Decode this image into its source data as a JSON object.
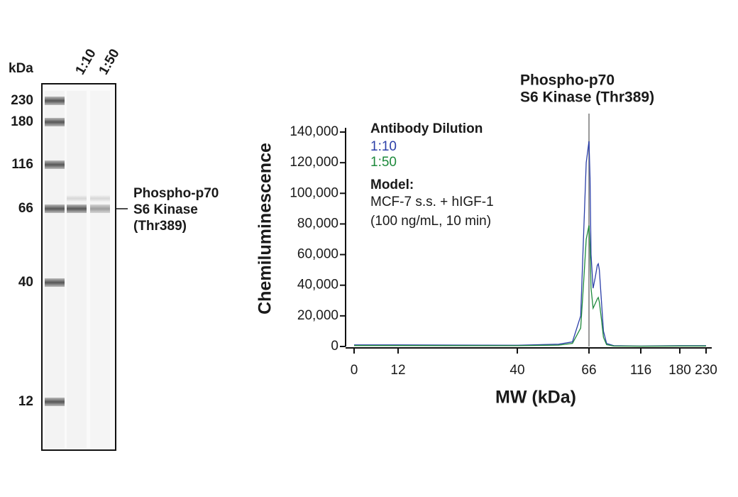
{
  "blot": {
    "unit_label": "kDa",
    "lanes": [
      "1:10",
      "1:50"
    ],
    "ladder": [
      230,
      180,
      116,
      66,
      40,
      12
    ],
    "band_label": [
      "Phospho-p70",
      "S6 Kinase",
      "(Thr389)"
    ]
  },
  "chart_data": {
    "type": "line",
    "x_label": "MW (kDa)",
    "y_label": "Chemiluminescence",
    "annotation": {
      "text": [
        "Phospho-p70",
        "S6 Kinase (Thr389)"
      ],
      "x": 66
    },
    "legend_title": "Antibody Dilution",
    "model_title": "Model:",
    "model_text": [
      "MCF-7 s.s. + hIGF-1",
      "(100 ng/mL, 10 min)"
    ],
    "x": [
      0,
      12,
      40,
      55,
      60,
      63,
      64,
      65,
      66,
      67,
      68,
      70,
      72,
      74,
      75,
      76,
      78,
      80,
      83,
      90,
      116,
      180,
      230
    ],
    "series": [
      {
        "name": "1:10",
        "color": "#2b3fa8",
        "values": [
          1000,
          1000,
          800,
          1500,
          3000,
          20000,
          70000,
          120000,
          134000,
          110000,
          60000,
          38000,
          45000,
          53000,
          54000,
          50000,
          30000,
          10000,
          2000,
          500,
          300,
          500,
          500
        ]
      },
      {
        "name": "1:50",
        "color": "#1e8a3c",
        "values": [
          600,
          600,
          500,
          900,
          2000,
          12000,
          40000,
          70000,
          79000,
          65000,
          38000,
          25000,
          28000,
          31000,
          32000,
          29000,
          18000,
          6000,
          1200,
          300,
          200,
          300,
          300
        ]
      }
    ],
    "xlim": [
      0,
      230
    ],
    "xticks": [
      0,
      12,
      40,
      66,
      116,
      180,
      230
    ],
    "ylim": [
      0,
      140000
    ],
    "yticks": [
      0,
      {
        "value": 20000,
        "label": "20,000"
      },
      {
        "value": 40000,
        "label": "40,000"
      },
      {
        "value": 60000,
        "label": "60,000"
      },
      {
        "value": 80000,
        "label": "80,000"
      },
      {
        "value": 100000,
        "label": "100,000"
      },
      {
        "value": 120000,
        "label": "120,000"
      },
      {
        "value": 140000,
        "label": "140,000"
      }
    ]
  }
}
